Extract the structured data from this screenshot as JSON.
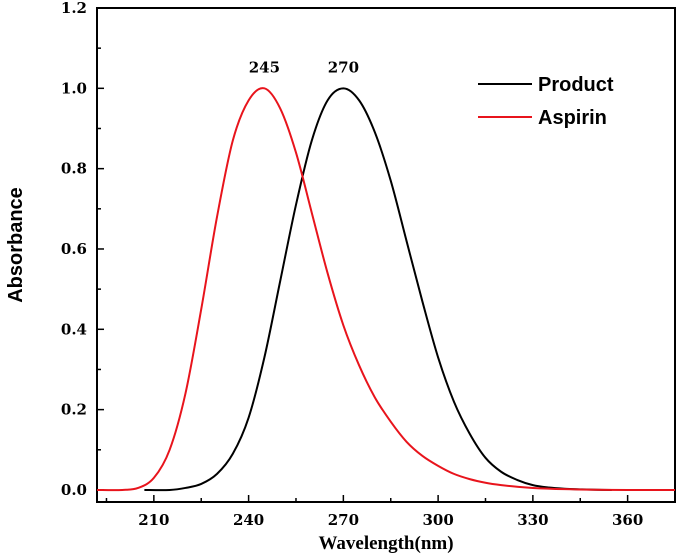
{
  "chart_data": {
    "type": "line",
    "title": "",
    "xlabel": "Wavelength(nm)",
    "ylabel": "Absorbance",
    "xlim": [
      192,
      375
    ],
    "ylim": [
      -0.03,
      1.2
    ],
    "xticks": [
      210,
      240,
      270,
      300,
      330,
      360
    ],
    "xtick_labels": [
      "210",
      "240",
      "270",
      "300",
      "330",
      "360"
    ],
    "yticks": [
      0.0,
      0.2,
      0.4,
      0.6,
      0.8,
      1.0,
      1.2
    ],
    "ytick_labels": [
      "0.0",
      "0.2",
      "0.4",
      "0.6",
      "0.8",
      "1.0",
      "1.2"
    ],
    "grid": false,
    "legend_position": "top-right",
    "series": [
      {
        "name": "Product",
        "color": "#000000",
        "x": [
          207,
          215,
          220,
          225,
          230,
          235,
          240,
          245,
          250,
          255,
          260,
          265,
          270,
          275,
          280,
          285,
          290,
          295,
          300,
          305,
          310,
          315,
          320,
          325,
          330,
          335,
          340,
          345,
          350,
          355
        ],
        "y": [
          0.0,
          0.0,
          0.005,
          0.015,
          0.04,
          0.09,
          0.18,
          0.33,
          0.52,
          0.71,
          0.87,
          0.97,
          1.0,
          0.97,
          0.89,
          0.77,
          0.62,
          0.47,
          0.33,
          0.22,
          0.14,
          0.08,
          0.045,
          0.025,
          0.012,
          0.006,
          0.003,
          0.0015,
          0.0005,
          0.0
        ]
      },
      {
        "name": "Aspirin",
        "color": "#e8141c",
        "x": [
          192,
          200,
          205,
          210,
          215,
          220,
          225,
          230,
          235,
          240,
          245,
          250,
          255,
          260,
          265,
          270,
          275,
          280,
          285,
          290,
          295,
          300,
          305,
          310,
          315,
          320,
          325,
          330,
          340,
          350,
          360,
          375
        ],
        "y": [
          0.0,
          0.0,
          0.005,
          0.03,
          0.1,
          0.24,
          0.45,
          0.68,
          0.87,
          0.97,
          1.0,
          0.95,
          0.84,
          0.69,
          0.54,
          0.41,
          0.31,
          0.23,
          0.17,
          0.12,
          0.085,
          0.06,
          0.04,
          0.027,
          0.018,
          0.012,
          0.008,
          0.005,
          0.002,
          0.0005,
          0.0,
          0.0
        ]
      }
    ],
    "annotations": [
      {
        "text": "245",
        "x": 245,
        "y": 1.0
      },
      {
        "text": "270",
        "x": 270,
        "y": 1.0
      }
    ]
  }
}
